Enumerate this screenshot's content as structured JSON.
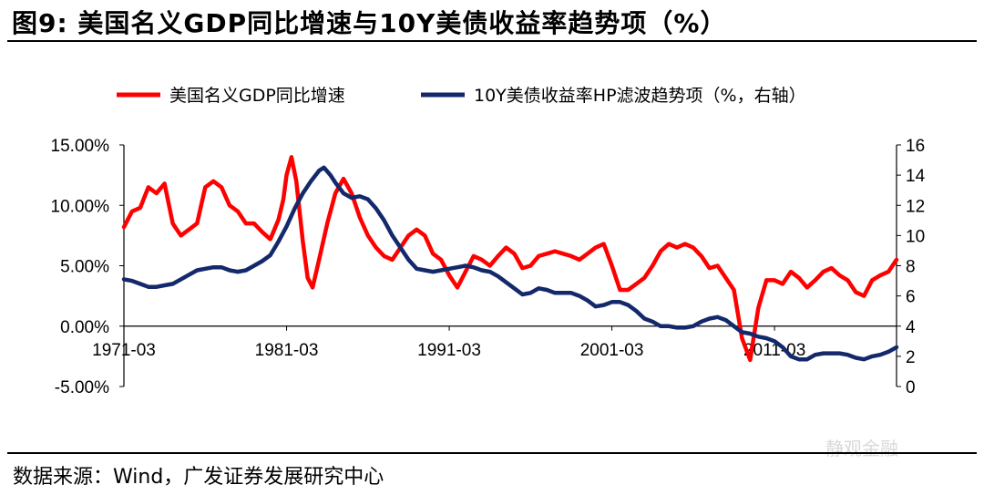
{
  "title": "图9:  美国名义GDP同比增速与10Y美债收益率趋势项（%）",
  "source": "数据来源：Wind，广发证券发展研究中心",
  "watermark": "静观金融",
  "colors": {
    "gdp": "#ff0000",
    "yield": "#14296b"
  },
  "chart_data": {
    "type": "line",
    "title": "图9:  美国名义GDP同比增速与10Y美债收益率趋势项（%）",
    "x_tick_labels": [
      "1971-03",
      "1981-03",
      "1991-03",
      "2001-03",
      "2011-03"
    ],
    "left_axis": {
      "ylim": [
        -5,
        15
      ],
      "ticks": [
        "15.00%",
        "10.00%",
        "5.00%",
        "0.00%",
        "-5.00%"
      ]
    },
    "right_axis": {
      "ylim": [
        0,
        16
      ],
      "ticks": [
        "16",
        "14",
        "12",
        "10",
        "8",
        "6",
        "4",
        "2",
        "0"
      ]
    },
    "legend_position": "top",
    "grid": false,
    "series": [
      {
        "name": "美国名义GDP同比增速",
        "axis": "left",
        "points": [
          [
            1971.0,
            8.2
          ],
          [
            1971.5,
            9.5
          ],
          [
            1972.0,
            9.8
          ],
          [
            1972.5,
            11.5
          ],
          [
            1973.0,
            11.0
          ],
          [
            1973.5,
            11.8
          ],
          [
            1974.0,
            8.5
          ],
          [
            1974.5,
            7.5
          ],
          [
            1975.0,
            8.0
          ],
          [
            1975.5,
            8.5
          ],
          [
            1976.0,
            11.5
          ],
          [
            1976.5,
            12.0
          ],
          [
            1977.0,
            11.5
          ],
          [
            1977.5,
            10.0
          ],
          [
            1978.0,
            9.5
          ],
          [
            1978.5,
            8.5
          ],
          [
            1979.0,
            8.5
          ],
          [
            1979.5,
            7.8
          ],
          [
            1980.0,
            7.2
          ],
          [
            1980.5,
            8.8
          ],
          [
            1980.8,
            10.5
          ],
          [
            1981.0,
            12.5
          ],
          [
            1981.3,
            14.0
          ],
          [
            1981.6,
            12.0
          ],
          [
            1982.0,
            7.0
          ],
          [
            1982.3,
            4.0
          ],
          [
            1982.6,
            3.2
          ],
          [
            1983.0,
            5.5
          ],
          [
            1983.5,
            8.5
          ],
          [
            1984.0,
            11.0
          ],
          [
            1984.5,
            12.2
          ],
          [
            1985.0,
            11.0
          ],
          [
            1985.5,
            9.0
          ],
          [
            1986.0,
            7.5
          ],
          [
            1986.5,
            6.5
          ],
          [
            1987.0,
            5.8
          ],
          [
            1987.5,
            5.5
          ],
          [
            1988.0,
            6.5
          ],
          [
            1988.5,
            7.5
          ],
          [
            1989.0,
            8.0
          ],
          [
            1989.5,
            7.5
          ],
          [
            1990.0,
            6.0
          ],
          [
            1990.5,
            5.5
          ],
          [
            1991.0,
            4.2
          ],
          [
            1991.5,
            3.2
          ],
          [
            1992.0,
            4.5
          ],
          [
            1992.5,
            5.8
          ],
          [
            1993.0,
            5.5
          ],
          [
            1993.5,
            5.0
          ],
          [
            1994.0,
            5.8
          ],
          [
            1994.5,
            6.5
          ],
          [
            1995.0,
            6.0
          ],
          [
            1995.5,
            4.8
          ],
          [
            1996.0,
            5.0
          ],
          [
            1996.5,
            5.8
          ],
          [
            1997.0,
            6.0
          ],
          [
            1997.5,
            6.2
          ],
          [
            1998.0,
            6.0
          ],
          [
            1998.5,
            5.8
          ],
          [
            1999.0,
            5.5
          ],
          [
            1999.5,
            6.0
          ],
          [
            2000.0,
            6.5
          ],
          [
            2000.5,
            6.8
          ],
          [
            2001.0,
            5.0
          ],
          [
            2001.5,
            3.0
          ],
          [
            2002.0,
            3.0
          ],
          [
            2002.5,
            3.5
          ],
          [
            2003.0,
            4.0
          ],
          [
            2003.5,
            5.0
          ],
          [
            2004.0,
            6.2
          ],
          [
            2004.5,
            6.8
          ],
          [
            2005.0,
            6.5
          ],
          [
            2005.5,
            6.8
          ],
          [
            2006.0,
            6.5
          ],
          [
            2006.5,
            5.8
          ],
          [
            2007.0,
            4.8
          ],
          [
            2007.5,
            5.0
          ],
          [
            2008.0,
            4.0
          ],
          [
            2008.5,
            3.0
          ],
          [
            2009.0,
            -1.0
          ],
          [
            2009.5,
            -2.8
          ],
          [
            2010.0,
            1.5
          ],
          [
            2010.5,
            3.8
          ],
          [
            2011.0,
            3.8
          ],
          [
            2011.5,
            3.5
          ],
          [
            2012.0,
            4.5
          ],
          [
            2012.5,
            4.0
          ],
          [
            2013.0,
            3.2
          ],
          [
            2013.5,
            3.8
          ],
          [
            2014.0,
            4.5
          ],
          [
            2014.5,
            4.8
          ],
          [
            2015.0,
            4.2
          ],
          [
            2015.5,
            3.8
          ],
          [
            2016.0,
            2.8
          ],
          [
            2016.5,
            2.5
          ],
          [
            2017.0,
            3.8
          ],
          [
            2017.5,
            4.2
          ],
          [
            2018.0,
            4.5
          ],
          [
            2018.5,
            5.5
          ]
        ]
      },
      {
        "name": "10Y美债收益率HP滤波趋势项（%，右轴）",
        "axis": "right",
        "points": [
          [
            1971.0,
            7.1
          ],
          [
            1971.5,
            7.0
          ],
          [
            1972.0,
            6.8
          ],
          [
            1972.5,
            6.6
          ],
          [
            1973.0,
            6.6
          ],
          [
            1973.5,
            6.7
          ],
          [
            1974.0,
            6.8
          ],
          [
            1974.5,
            7.1
          ],
          [
            1975.0,
            7.4
          ],
          [
            1975.5,
            7.7
          ],
          [
            1976.0,
            7.8
          ],
          [
            1976.5,
            7.9
          ],
          [
            1977.0,
            7.9
          ],
          [
            1977.5,
            7.7
          ],
          [
            1978.0,
            7.6
          ],
          [
            1978.5,
            7.7
          ],
          [
            1979.0,
            8.0
          ],
          [
            1979.5,
            8.3
          ],
          [
            1980.0,
            8.7
          ],
          [
            1980.5,
            9.6
          ],
          [
            1981.0,
            10.6
          ],
          [
            1981.5,
            11.8
          ],
          [
            1982.0,
            12.8
          ],
          [
            1982.5,
            13.6
          ],
          [
            1983.0,
            14.3
          ],
          [
            1983.3,
            14.5
          ],
          [
            1983.7,
            14.0
          ],
          [
            1984.0,
            13.5
          ],
          [
            1984.5,
            12.8
          ],
          [
            1985.0,
            12.5
          ],
          [
            1985.5,
            12.6
          ],
          [
            1986.0,
            12.4
          ],
          [
            1986.5,
            11.8
          ],
          [
            1987.0,
            11.0
          ],
          [
            1987.5,
            10.0
          ],
          [
            1988.0,
            9.2
          ],
          [
            1988.5,
            8.4
          ],
          [
            1989.0,
            7.8
          ],
          [
            1989.5,
            7.7
          ],
          [
            1990.0,
            7.6
          ],
          [
            1990.5,
            7.7
          ],
          [
            1991.0,
            7.8
          ],
          [
            1991.5,
            7.9
          ],
          [
            1992.0,
            8.0
          ],
          [
            1992.5,
            7.9
          ],
          [
            1993.0,
            7.7
          ],
          [
            1993.5,
            7.6
          ],
          [
            1994.0,
            7.3
          ],
          [
            1994.5,
            6.9
          ],
          [
            1995.0,
            6.5
          ],
          [
            1995.5,
            6.1
          ],
          [
            1996.0,
            6.2
          ],
          [
            1996.5,
            6.5
          ],
          [
            1997.0,
            6.4
          ],
          [
            1997.5,
            6.2
          ],
          [
            1998.0,
            6.2
          ],
          [
            1998.5,
            6.2
          ],
          [
            1999.0,
            6.0
          ],
          [
            1999.5,
            5.7
          ],
          [
            2000.0,
            5.3
          ],
          [
            2000.5,
            5.4
          ],
          [
            2001.0,
            5.6
          ],
          [
            2001.5,
            5.6
          ],
          [
            2002.0,
            5.4
          ],
          [
            2002.5,
            5.0
          ],
          [
            2003.0,
            4.5
          ],
          [
            2003.5,
            4.3
          ],
          [
            2004.0,
            4.0
          ],
          [
            2004.5,
            4.0
          ],
          [
            2005.0,
            3.9
          ],
          [
            2005.5,
            3.9
          ],
          [
            2006.0,
            4.0
          ],
          [
            2006.5,
            4.3
          ],
          [
            2007.0,
            4.5
          ],
          [
            2007.5,
            4.6
          ],
          [
            2008.0,
            4.4
          ],
          [
            2008.5,
            4.0
          ],
          [
            2009.0,
            3.6
          ],
          [
            2009.5,
            3.5
          ],
          [
            2010.0,
            3.3
          ],
          [
            2010.5,
            3.2
          ],
          [
            2011.0,
            3.0
          ],
          [
            2011.5,
            2.6
          ],
          [
            2012.0,
            2.0
          ],
          [
            2012.5,
            1.8
          ],
          [
            2013.0,
            1.8
          ],
          [
            2013.5,
            2.1
          ],
          [
            2014.0,
            2.2
          ],
          [
            2014.5,
            2.2
          ],
          [
            2015.0,
            2.2
          ],
          [
            2015.5,
            2.1
          ],
          [
            2016.0,
            1.9
          ],
          [
            2016.5,
            1.8
          ],
          [
            2017.0,
            2.0
          ],
          [
            2017.5,
            2.1
          ],
          [
            2018.0,
            2.3
          ],
          [
            2018.5,
            2.6
          ]
        ]
      }
    ]
  }
}
